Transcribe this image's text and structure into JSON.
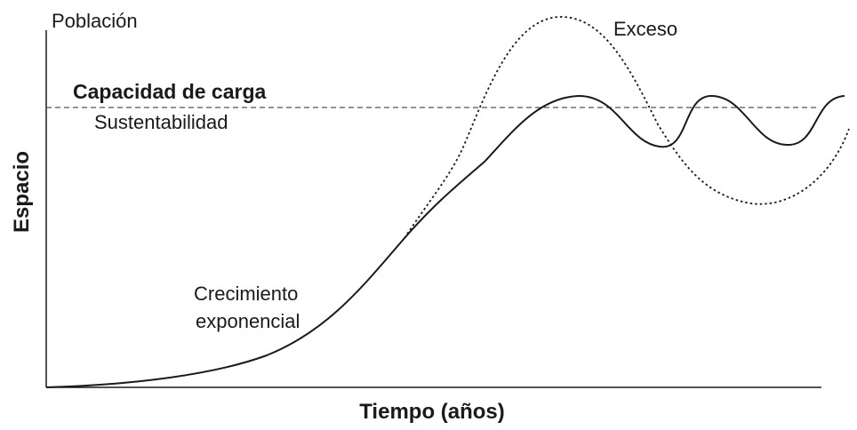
{
  "labels": {
    "y_axis_top": "Población",
    "y_axis_side": "Espacio",
    "x_axis": "Tiempo (años)",
    "capacity_title": "Capacidad de carga",
    "capacity_subtitle": "Sustentabilidad",
    "overshoot": "Exceso",
    "growth_line1": "Crecimiento",
    "growth_line2": "exponencial"
  },
  "colors": {
    "ink": "#1a1a1a",
    "dashed_line": "#555555",
    "background": "#ffffff"
  },
  "line_styles": {
    "carrying_capacity": "dashed",
    "overshoot_curve": "dotted",
    "population_curve": "solid"
  }
}
